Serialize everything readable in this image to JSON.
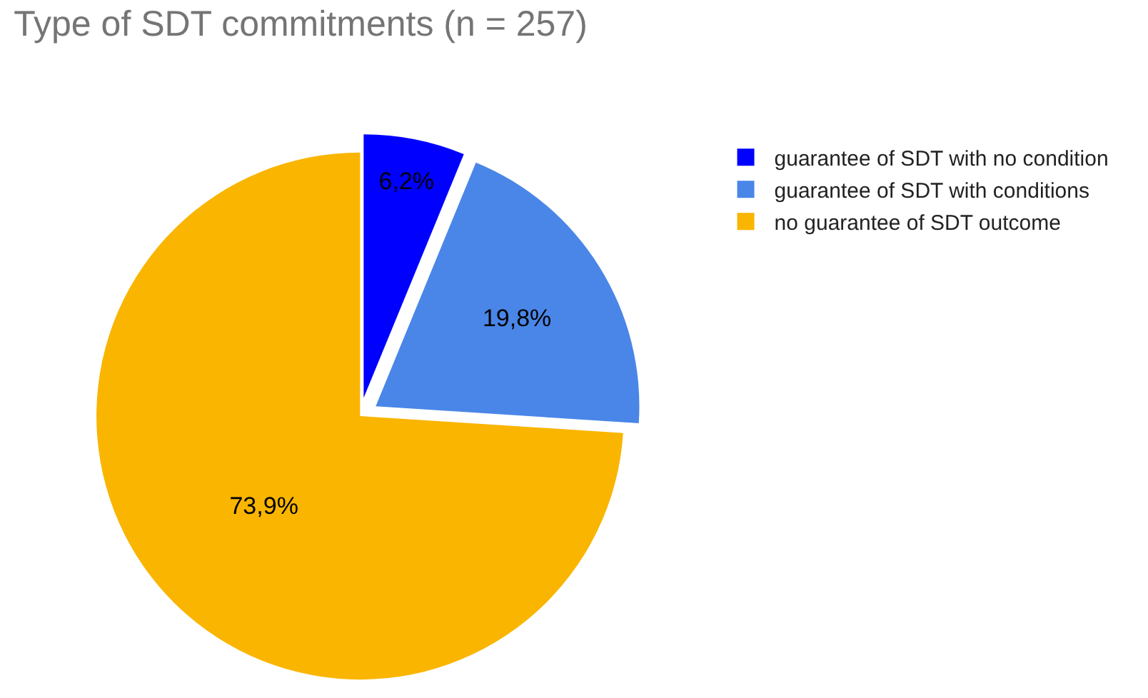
{
  "chart_data": {
    "type": "pie",
    "title": "Type of SDT commitments (n = 257)",
    "categories": [
      "guarantee of SDT with no condition",
      "guarantee of SDT with conditions",
      "no guarantee of SDT outcome"
    ],
    "values": [
      6.2,
      19.8,
      73.9
    ],
    "colors": [
      "#0000ff",
      "#4a86e8",
      "#f9b500"
    ],
    "value_labels": [
      "6,2%",
      "19,8%",
      "73,9%"
    ],
    "legend": "top right"
  }
}
